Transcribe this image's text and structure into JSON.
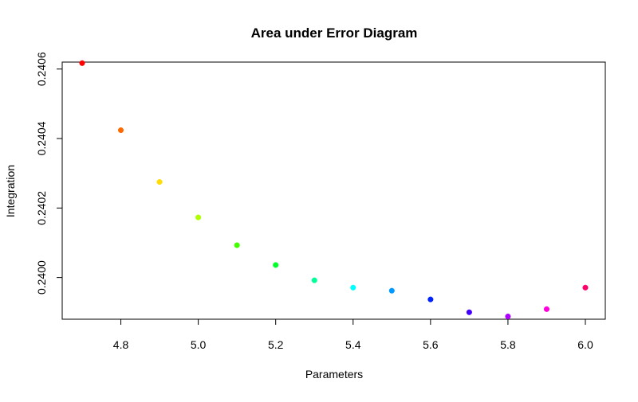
{
  "chart_data": {
    "type": "scatter",
    "title": "Area under Error Diagram",
    "xlabel": "Parameters",
    "ylabel": "Integration",
    "xlim": [
      4.7,
      6.0
    ],
    "ylim": [
      0.23988,
      0.24062
    ],
    "xticks": [
      4.8,
      5.0,
      5.2,
      5.4,
      5.6,
      5.8,
      6.0
    ],
    "xtick_labels": [
      "4.8",
      "5.0",
      "5.2",
      "5.4",
      "5.6",
      "5.8",
      "6.0"
    ],
    "yticks": [
      0.24,
      0.2402,
      0.2404,
      0.2406
    ],
    "ytick_labels": [
      "0.2400",
      "0.2402",
      "0.2404",
      "0.2406"
    ],
    "grid": false,
    "points": [
      {
        "x": 4.7,
        "y": 0.240617,
        "color": "#ff0000"
      },
      {
        "x": 4.8,
        "y": 0.240424,
        "color": "#ff6a00"
      },
      {
        "x": 4.9,
        "y": 0.240275,
        "color": "#ffdd00"
      },
      {
        "x": 5.0,
        "y": 0.240173,
        "color": "#b0ff00"
      },
      {
        "x": 5.1,
        "y": 0.240093,
        "color": "#44ff00"
      },
      {
        "x": 5.2,
        "y": 0.240036,
        "color": "#00ff2a"
      },
      {
        "x": 5.3,
        "y": 0.239992,
        "color": "#00ff99"
      },
      {
        "x": 5.4,
        "y": 0.239971,
        "color": "#00ffff"
      },
      {
        "x": 5.5,
        "y": 0.239962,
        "color": "#0099ff"
      },
      {
        "x": 5.6,
        "y": 0.239937,
        "color": "#0022ff"
      },
      {
        "x": 5.7,
        "y": 0.2399,
        "color": "#4400ff"
      },
      {
        "x": 5.8,
        "y": 0.239888,
        "color": "#b000ff"
      },
      {
        "x": 5.9,
        "y": 0.239909,
        "color": "#ff00dd"
      },
      {
        "x": 6.0,
        "y": 0.239971,
        "color": "#ff006a"
      }
    ]
  }
}
